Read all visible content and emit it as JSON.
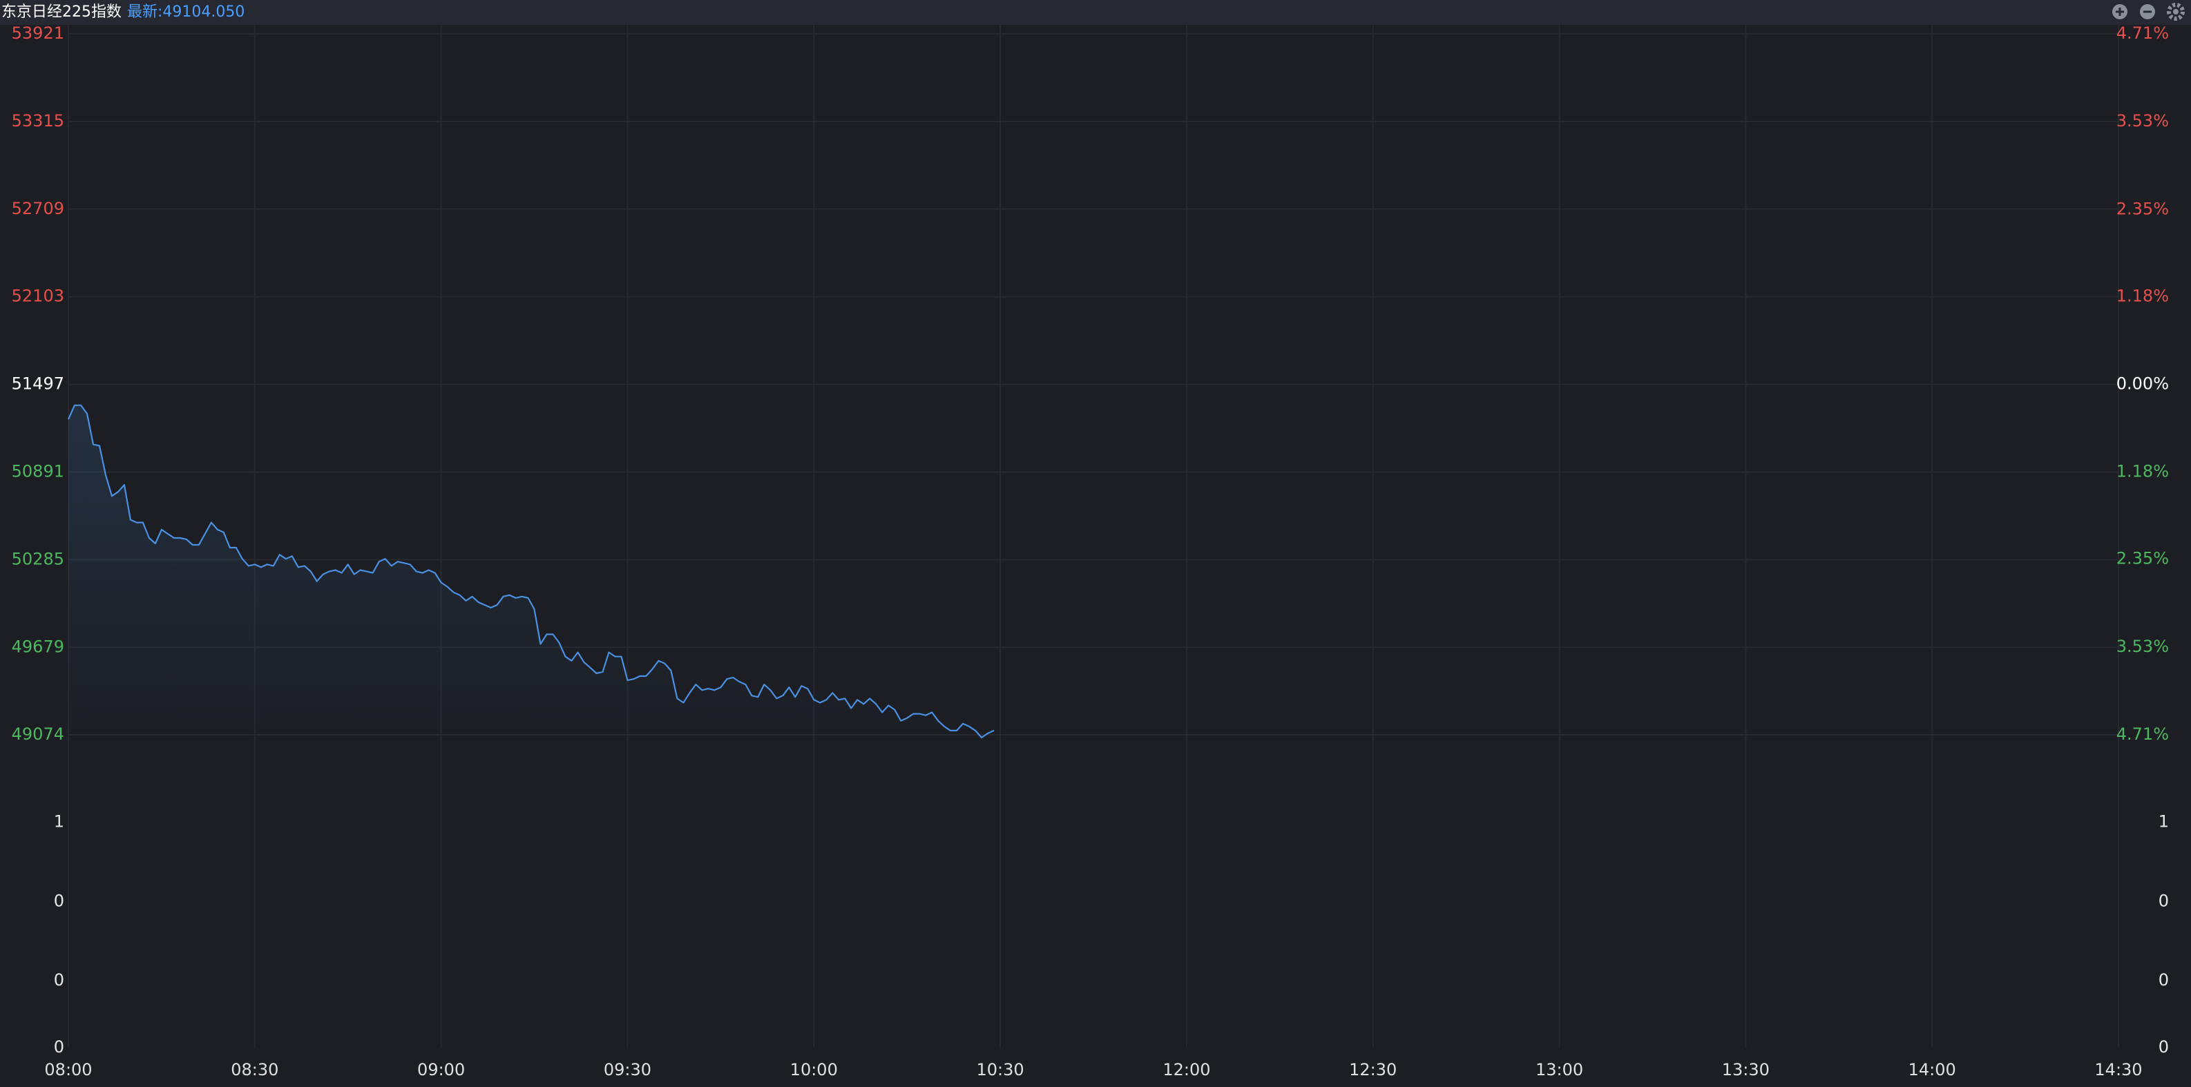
{
  "chart_data": [
    {
      "type": "line",
      "title": "东京日经225指数",
      "subtitle": "最新:49104.050",
      "x": [
        0,
        1,
        2,
        3,
        4,
        5,
        6,
        7,
        8,
        9,
        10,
        11,
        12,
        13,
        14,
        15,
        16,
        17,
        18,
        19,
        20,
        21,
        22,
        23,
        24,
        25,
        26,
        27,
        28,
        29,
        30,
        31,
        32,
        33,
        34,
        35,
        36,
        37,
        38,
        39,
        40,
        41,
        42,
        43,
        44,
        45,
        46,
        47,
        48,
        49,
        50,
        51,
        52,
        53,
        54,
        55,
        56,
        57,
        58,
        59,
        60,
        61,
        62,
        63,
        64,
        65,
        66,
        67,
        68,
        69,
        70,
        71,
        72,
        73,
        74,
        75,
        76,
        77,
        78,
        79,
        80,
        81,
        82,
        83,
        84,
        85,
        86,
        87,
        88,
        89,
        90,
        91,
        92,
        93,
        94,
        95,
        96,
        97,
        98,
        99,
        100,
        101,
        102,
        103,
        104,
        105,
        106,
        107,
        108,
        109,
        110,
        111,
        112,
        113,
        114,
        115,
        116,
        117,
        118,
        119,
        120,
        121,
        122,
        123,
        124,
        125,
        126,
        127,
        128,
        129,
        130,
        131,
        132,
        133,
        134,
        135,
        136,
        137,
        138,
        139,
        140,
        141,
        142,
        143,
        144,
        145,
        146,
        147,
        148,
        149
      ],
      "series": [
        {
          "color": "#4a90e2",
          "values": [
            51256,
            51353,
            51353,
            51295,
            51082,
            51073,
            50870,
            50725,
            50754,
            50802,
            50561,
            50542,
            50542,
            50435,
            50397,
            50493,
            50464,
            50435,
            50435,
            50426,
            50387,
            50387,
            50464,
            50542,
            50493,
            50474,
            50368,
            50368,
            50291,
            50242,
            50252,
            50233,
            50252,
            50242,
            50320,
            50291,
            50310,
            50233,
            50242,
            50204,
            50136,
            50184,
            50204,
            50213,
            50194,
            50252,
            50184,
            50213,
            50204,
            50194,
            50271,
            50291,
            50242,
            50271,
            50262,
            50252,
            50204,
            50194,
            50213,
            50194,
            50127,
            50098,
            50059,
            50040,
            50001,
            50030,
            49991,
            49972,
            49953,
            49972,
            50030,
            50040,
            50020,
            50030,
            50020,
            49943,
            49702,
            49769,
            49769,
            49711,
            49615,
            49586,
            49644,
            49576,
            49538,
            49499,
            49509,
            49644,
            49615,
            49615,
            49451,
            49460,
            49480,
            49480,
            49528,
            49586,
            49567,
            49518,
            49325,
            49296,
            49364,
            49422,
            49383,
            49393,
            49383,
            49402,
            49460,
            49470,
            49441,
            49422,
            49345,
            49335,
            49422,
            49383,
            49325,
            49345,
            49402,
            49335,
            49412,
            49393,
            49316,
            49296,
            49316,
            49364,
            49316,
            49325,
            49258,
            49316,
            49287,
            49325,
            49287,
            49229,
            49277,
            49248,
            49171,
            49190,
            49219,
            49219,
            49209,
            49229,
            49171,
            49132,
            49103,
            49103,
            49151,
            49132,
            49103,
            49055,
            49084,
            49104.05
          ]
        }
      ],
      "xlim": [
        0,
        330
      ],
      "xticks": [
        {
          "value": 0,
          "label": "08:00"
        },
        {
          "value": 30,
          "label": "08:30"
        },
        {
          "value": 60,
          "label": "09:00"
        },
        {
          "value": 90,
          "label": "09:30"
        },
        {
          "value": 120,
          "label": "10:00"
        },
        {
          "value": 150,
          "label": "10:30"
        },
        {
          "value": 180,
          "label": "12:00"
        },
        {
          "value": 210,
          "label": "12:30"
        },
        {
          "value": 240,
          "label": "13:00"
        },
        {
          "value": 270,
          "label": "13:30"
        },
        {
          "value": 300,
          "label": "14:00"
        },
        {
          "value": 330,
          "label": "14:30"
        }
      ],
      "ylim": [
        49074,
        53921
      ],
      "yticks": [
        53921,
        53315,
        52709,
        52103,
        51497,
        50891,
        50285,
        49679,
        49074
      ],
      "y2lim": [
        -4.71,
        4.71
      ],
      "y2ticks": [
        {
          "value": 4.71,
          "label": "4.71%"
        },
        {
          "value": 3.53,
          "label": "3.53%"
        },
        {
          "value": 2.35,
          "label": "2.35%"
        },
        {
          "value": 1.18,
          "label": "1.18%"
        },
        {
          "value": 0,
          "label": "0.00%"
        },
        {
          "value": -1.18,
          "label": "1.18%"
        },
        {
          "value": -2.35,
          "label": "2.35%"
        },
        {
          "value": -3.53,
          "label": "3.53%"
        },
        {
          "value": -4.71,
          "label": "4.71%"
        }
      ],
      "up_color": "#e5504c",
      "down_color": "#4cb860",
      "grid": true
    },
    {
      "type": "bar",
      "ylim": [
        -0.48,
        1.52
      ],
      "yticks": [
        1,
        {
          "value": 0.48,
          "label": "0"
        },
        {
          "value": -0.04,
          "label": "0"
        },
        {
          "value": -0.48,
          "label": "0"
        }
      ],
      "y2lim": [
        -0.48,
        1.52
      ],
      "y2ticks": [
        1,
        {
          "value": 0.48,
          "label": "0"
        },
        {
          "value": -0.04,
          "label": "0"
        },
        {
          "value": -0.48,
          "label": "0"
        }
      ]
    }
  ]
}
